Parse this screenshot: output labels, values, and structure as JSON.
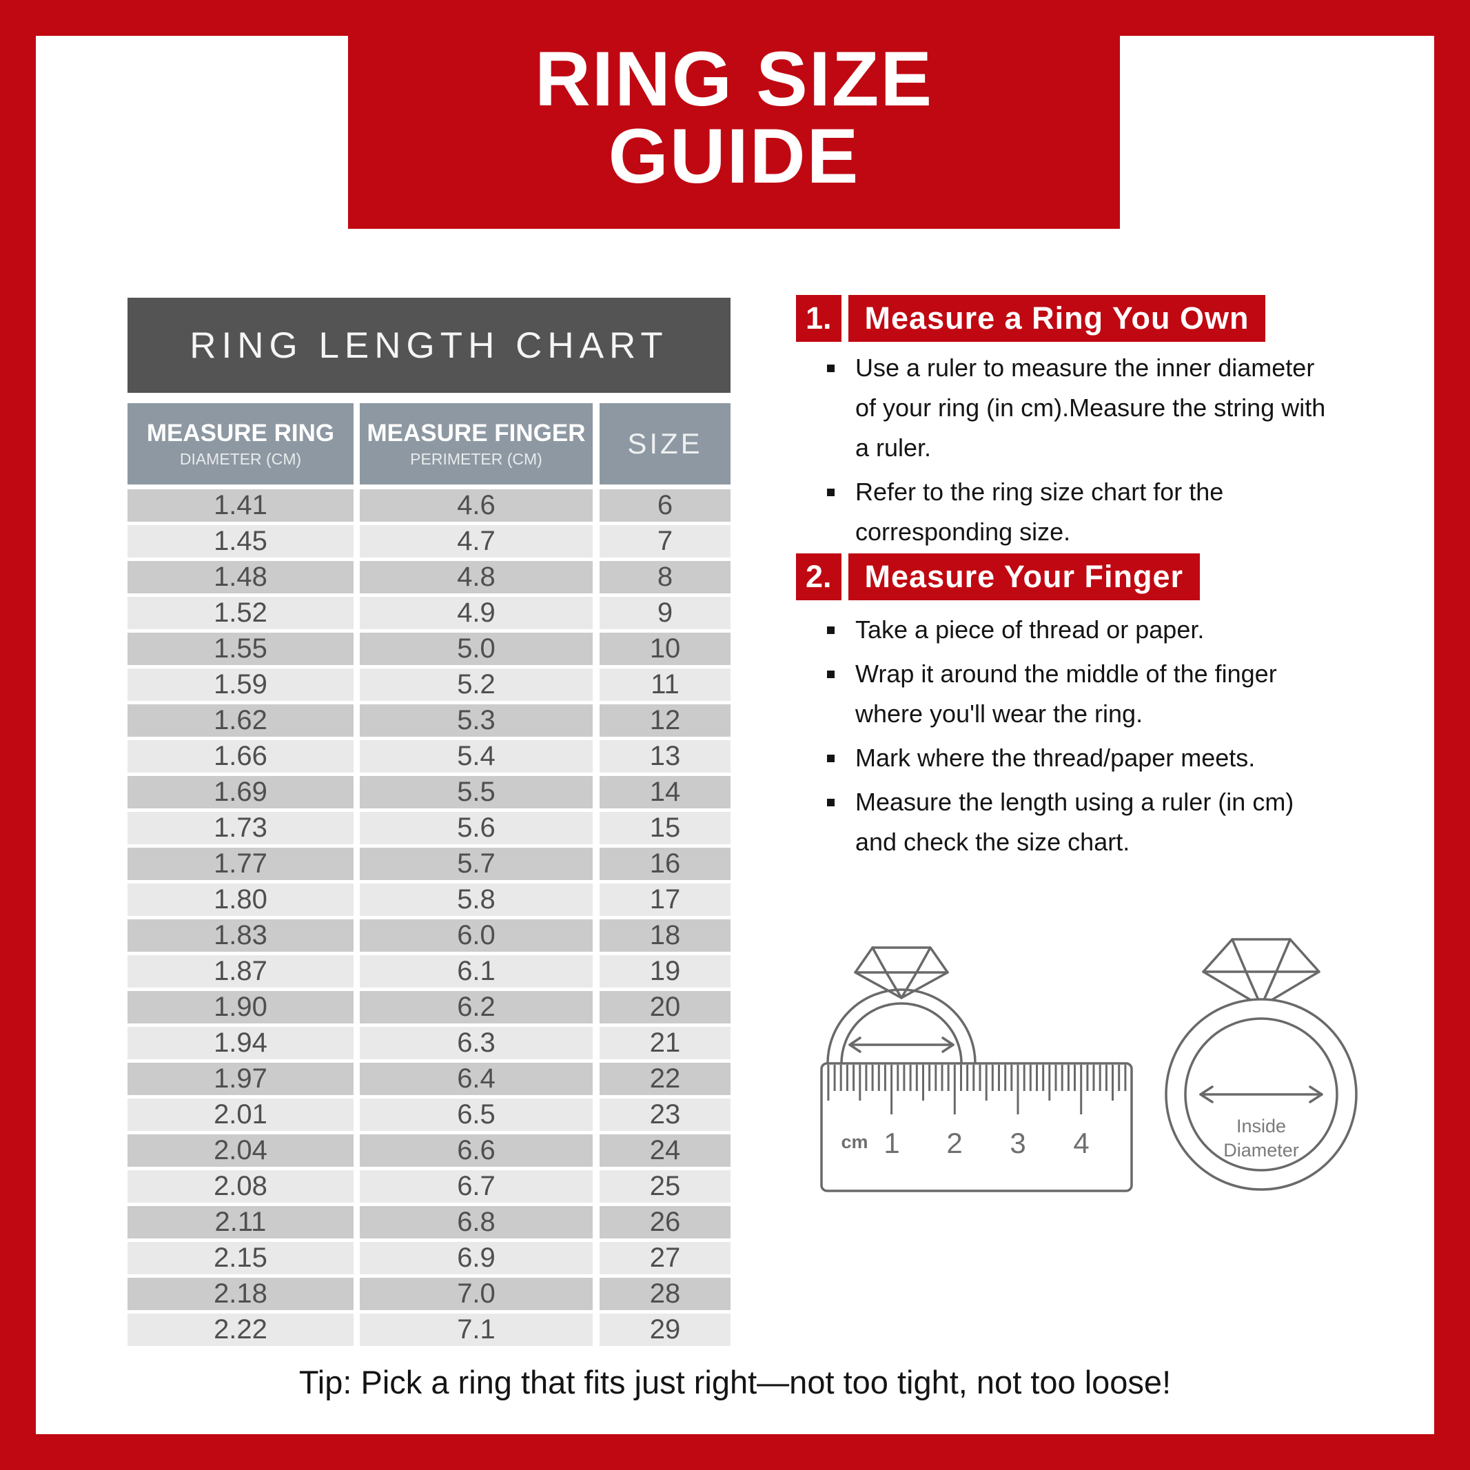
{
  "title": {
    "line1": "RING SIZE",
    "line2": "GUIDE"
  },
  "table": {
    "header": "RING LENGTH CHART",
    "columns": [
      {
        "label": "MEASURE RING",
        "sublabel": "DIAMETER (CM)"
      },
      {
        "label": "MEASURE FINGER",
        "sublabel": "PERIMETER (CM)"
      },
      {
        "label": "SIZE",
        "sublabel": ""
      }
    ],
    "rows": [
      {
        "diameter": "1.41",
        "perimeter": "4.6",
        "size": "6"
      },
      {
        "diameter": "1.45",
        "perimeter": "4.7",
        "size": "7"
      },
      {
        "diameter": "1.48",
        "perimeter": "4.8",
        "size": "8"
      },
      {
        "diameter": "1.52",
        "perimeter": "4.9",
        "size": "9"
      },
      {
        "diameter": "1.55",
        "perimeter": "5.0",
        "size": "10"
      },
      {
        "diameter": "1.59",
        "perimeter": "5.2",
        "size": "11"
      },
      {
        "diameter": "1.62",
        "perimeter": "5.3",
        "size": "12"
      },
      {
        "diameter": "1.66",
        "perimeter": "5.4",
        "size": "13"
      },
      {
        "diameter": "1.69",
        "perimeter": "5.5",
        "size": "14"
      },
      {
        "diameter": "1.73",
        "perimeter": "5.6",
        "size": "15"
      },
      {
        "diameter": "1.77",
        "perimeter": "5.7",
        "size": "16"
      },
      {
        "diameter": "1.80",
        "perimeter": "5.8",
        "size": "17"
      },
      {
        "diameter": "1.83",
        "perimeter": "6.0",
        "size": "18"
      },
      {
        "diameter": "1.87",
        "perimeter": "6.1",
        "size": "19"
      },
      {
        "diameter": "1.90",
        "perimeter": "6.2",
        "size": "20"
      },
      {
        "diameter": "1.94",
        "perimeter": "6.3",
        "size": "21"
      },
      {
        "diameter": "1.97",
        "perimeter": "6.4",
        "size": "22"
      },
      {
        "diameter": "2.01",
        "perimeter": "6.5",
        "size": "23"
      },
      {
        "diameter": "2.04",
        "perimeter": "6.6",
        "size": "24"
      },
      {
        "diameter": "2.08",
        "perimeter": "6.7",
        "size": "25"
      },
      {
        "diameter": "2.11",
        "perimeter": "6.8",
        "size": "26"
      },
      {
        "diameter": "2.15",
        "perimeter": "6.9",
        "size": "27"
      },
      {
        "diameter": "2.18",
        "perimeter": "7.0",
        "size": "28"
      },
      {
        "diameter": "2.22",
        "perimeter": "7.1",
        "size": "29"
      }
    ]
  },
  "instructions": [
    {
      "number": "1.",
      "heading": "Measure a Ring You Own",
      "bullets": [
        "Use a ruler to measure the inner diameter\nof your ring (in cm).Measure the string with\na ruler.",
        "Refer to the ring size chart for the\ncorresponding size."
      ]
    },
    {
      "number": "2.",
      "heading": "Measure Your Finger",
      "bullets": [
        "Take a piece of thread or paper.",
        "Wrap it around the middle of the finger\nwhere you'll wear the ring.",
        "Mark where the thread/paper meets.",
        "Measure the length using a ruler (in cm)\nand check the size chart."
      ]
    }
  ],
  "illustrations": {
    "ruler": {
      "unit": "cm",
      "tick_labels": [
        "1",
        "2",
        "3",
        "4"
      ]
    },
    "ring": {
      "label_line1": "Inside",
      "label_line2": "Diameter"
    }
  },
  "tip": "Tip: Pick a ring that fits just right—not too tight, not too loose!",
  "colors": {
    "red": "#c00812",
    "table_header_bg": "#545454",
    "column_header_bg": "#8d98a2",
    "row_dark": "#cbcbcb",
    "row_light": "#e9e9e9",
    "sketch_stroke": "#696969"
  }
}
